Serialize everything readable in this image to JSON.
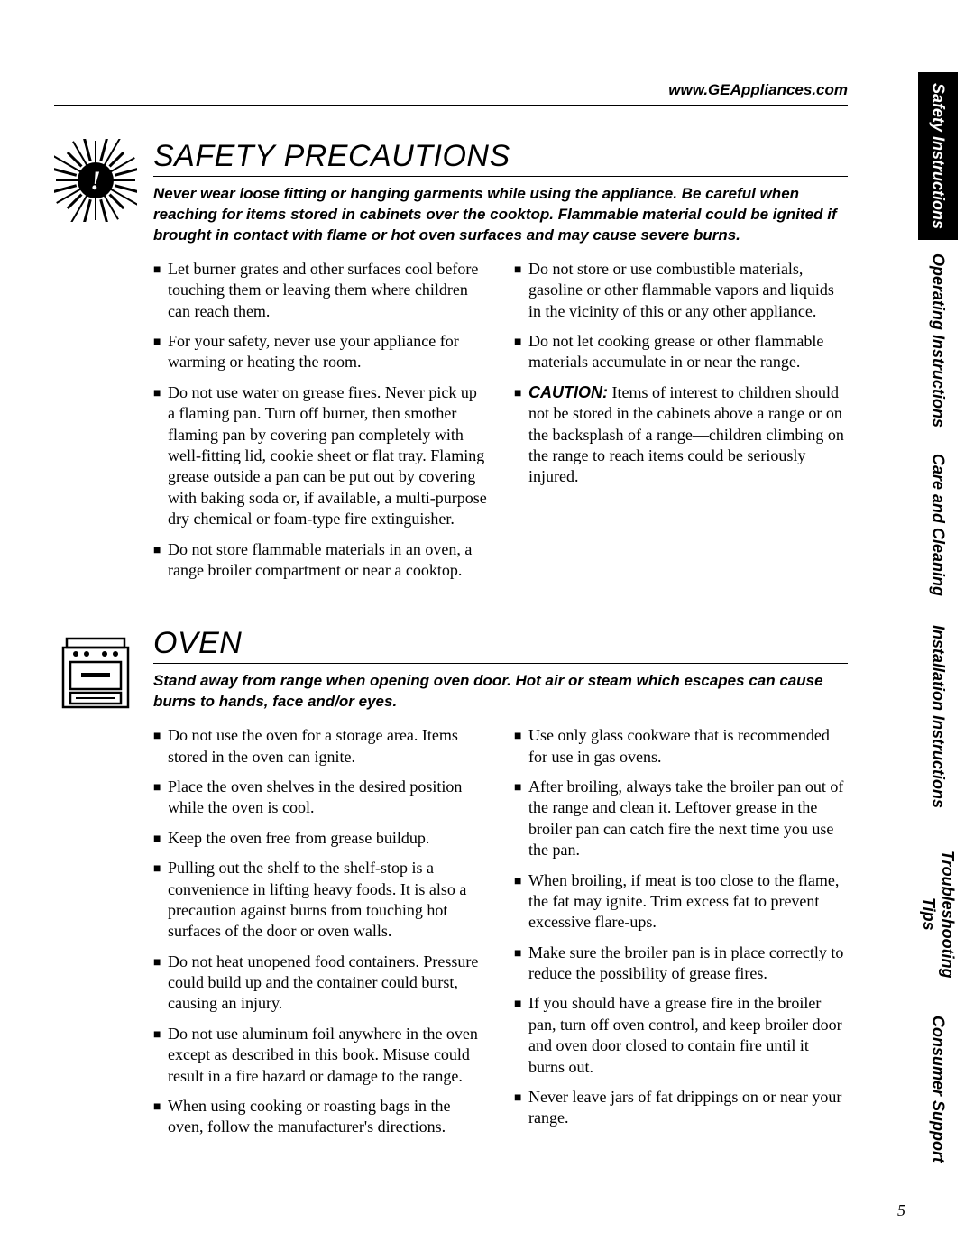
{
  "header": {
    "url": "www.GEAppliances.com"
  },
  "page_number": "5",
  "side_tabs": [
    {
      "label": "Safety Instructions",
      "active": true,
      "flex": 1.1
    },
    {
      "label": "Operating Instructions",
      "active": false,
      "flex": 1.35
    },
    {
      "label": "Care and Cleaning",
      "active": false,
      "flex": 1.1
    },
    {
      "label": "Installation Instructions",
      "active": false,
      "flex": 1.45
    },
    {
      "label": "Troubleshooting Tips",
      "active": false,
      "flex": 1.2
    },
    {
      "label": "Consumer Support",
      "active": false,
      "flex": 1.1
    }
  ],
  "sections": [
    {
      "icon": "burst",
      "title": "SAFETY PRECAUTIONS",
      "intro": "Never wear loose fitting or hanging garments while using the appliance. Be careful when reaching for items stored in cabinets over the cooktop. Flammable material could be ignited if brought in contact with flame or hot oven surfaces and may cause severe burns.",
      "left": [
        "Let burner grates and other surfaces cool before touching them or leaving them where children can reach them.",
        "For your safety, never use your appliance for warming or heating the room.",
        "Do not use water on grease fires. Never pick up a flaming pan. Turn off burner, then smother flaming pan by covering pan completely with well-fitting lid, cookie sheet or flat tray. Flaming grease outside a pan can be put out by covering with baking soda or, if available, a multi-purpose dry chemical or foam-type fire extinguisher.",
        "Do not store flammable materials in an oven, a range broiler compartment or near a cooktop."
      ],
      "right": [
        {
          "text": "Do not store or use combustible materials, gasoline or other flammable vapors and liquids in the vicinity of this or any other appliance."
        },
        {
          "text": "Do not let cooking grease or other flammable materials accumulate in or near the range."
        },
        {
          "caution": "CAUTION:",
          "text": "Items of interest to children should not be stored in the cabinets above a range or on the backsplash of a range—children climbing on the range to reach items could be seriously injured."
        }
      ]
    },
    {
      "icon": "oven",
      "title": "OVEN",
      "intro": "Stand away from range when opening oven door. Hot air or steam which escapes can cause burns to hands, face and/or eyes.",
      "left": [
        "Do not use the oven for a storage area. Items stored in the oven can ignite.",
        "Place the oven shelves in the desired position while the oven is cool.",
        "Keep the oven free from grease buildup.",
        "Pulling out the shelf to the shelf-stop is a convenience in lifting heavy foods. It is also a precaution against burns from touching hot surfaces of the door or oven walls.",
        "Do not heat unopened food containers. Pressure could build up and the container could burst, causing an injury.",
        "Do not use aluminum foil anywhere in the oven except as described in this book. Misuse could result in a fire hazard or damage to the range.",
        "When using cooking or roasting bags in the oven, follow the manufacturer's directions."
      ],
      "right": [
        {
          "text": "Use only glass cookware that is recommended for use in gas ovens."
        },
        {
          "text": "After broiling, always take the broiler pan out of the range and clean it. Leftover grease in the broiler pan can catch fire the next time you use the pan."
        },
        {
          "text": "When broiling, if meat is too close to the flame, the fat may ignite. Trim excess fat to prevent excessive flare-ups."
        },
        {
          "text": "Make sure the broiler pan is in place correctly to reduce the possibility of grease fires."
        },
        {
          "text": "If you should have a grease fire in the broiler pan, turn off oven control, and keep broiler door and oven door closed to contain fire until it burns out."
        },
        {
          "text": "Never leave jars of fat drippings on or near your range."
        }
      ]
    }
  ]
}
